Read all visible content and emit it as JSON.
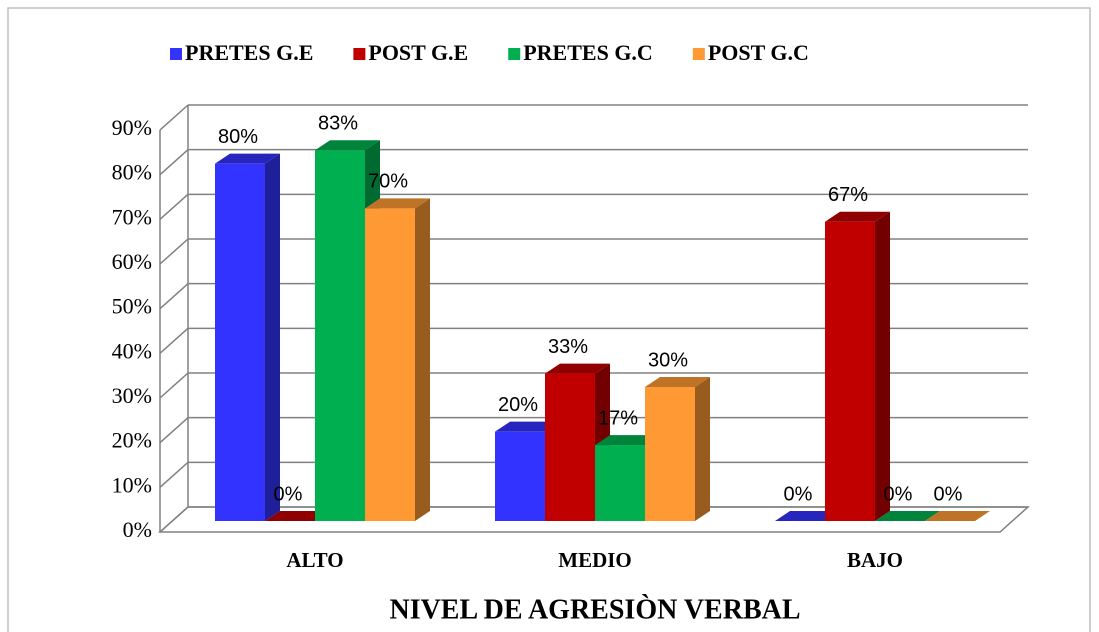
{
  "chart_data": {
    "type": "bar3d",
    "xlabel": "NIVEL DE AGRESIÒN VERBAL",
    "categories": [
      "ALTO",
      "MEDIO",
      "BAJO"
    ],
    "series": [
      {
        "name": "PRETES G.E",
        "color": "#3333ff",
        "values": [
          80,
          20,
          0
        ],
        "value_labels": [
          "80%",
          "20%",
          "0%"
        ]
      },
      {
        "name": "POST G.E",
        "color": "#c00000",
        "values": [
          0,
          33,
          67
        ],
        "value_labels": [
          "0%",
          "33%",
          "67%"
        ]
      },
      {
        "name": "PRETES G.C",
        "color": "#00b050",
        "values": [
          83,
          17,
          0
        ],
        "value_labels": [
          "83%",
          "17%",
          "0%"
        ]
      },
      {
        "name": "POST G.C",
        "color": "#ff9933",
        "values": [
          70,
          30,
          0
        ],
        "value_labels": [
          "70%",
          "30%",
          "0%"
        ]
      }
    ],
    "ylim": [
      0,
      90
    ],
    "yticks": [
      {
        "value": 0,
        "label": "0%"
      },
      {
        "value": 10,
        "label": "10%"
      },
      {
        "value": 20,
        "label": "20%"
      },
      {
        "value": 30,
        "label": "30%"
      },
      {
        "value": 40,
        "label": "40%"
      },
      {
        "value": 50,
        "label": "50%"
      },
      {
        "value": 60,
        "label": "60%"
      },
      {
        "value": 70,
        "label": "70%"
      },
      {
        "value": 80,
        "label": "80%"
      },
      {
        "value": 90,
        "label": "90%"
      }
    ],
    "grid": true,
    "legend": "top"
  }
}
